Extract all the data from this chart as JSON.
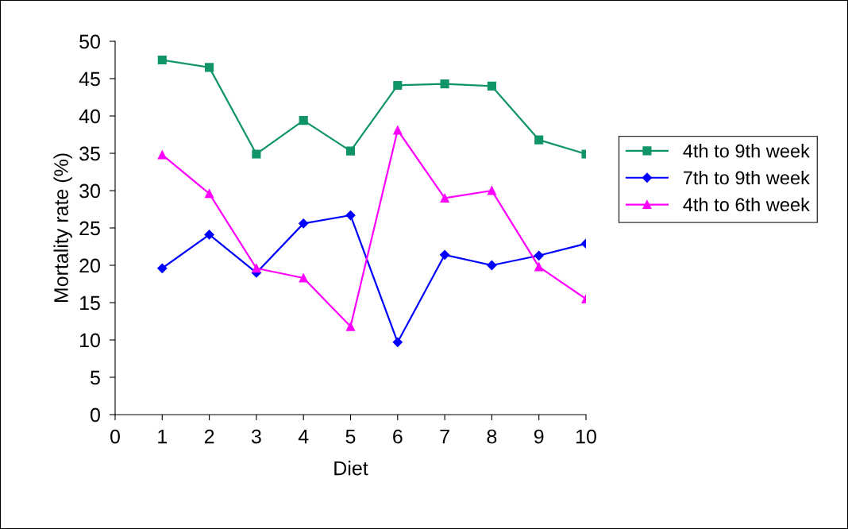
{
  "chart_data": {
    "type": "line",
    "xlabel": "Diet",
    "ylabel": "Mortality rate (%)",
    "x": [
      1,
      2,
      3,
      4,
      5,
      6,
      7,
      8,
      9,
      10
    ],
    "xlim": [
      0,
      10
    ],
    "xticks": [
      0,
      1,
      2,
      3,
      4,
      5,
      6,
      7,
      8,
      9,
      10
    ],
    "ylim": [
      0,
      50
    ],
    "yticks": [
      0,
      5,
      10,
      15,
      20,
      25,
      30,
      35,
      40,
      45,
      50
    ],
    "grid": false,
    "legend": "right",
    "line_style": "solid",
    "series": [
      {
        "name": "4th to 9th week",
        "color": "#109469",
        "marker": "square",
        "values": [
          47.5,
          46.5,
          34.9,
          39.4,
          35.3,
          44.1,
          44.3,
          44.0,
          36.8,
          34.9
        ]
      },
      {
        "name": "7th to 9th week",
        "color": "#0000ff",
        "marker": "diamond",
        "values": [
          19.6,
          24.1,
          19.0,
          25.6,
          26.7,
          9.7,
          21.4,
          20.0,
          21.3,
          22.9
        ]
      },
      {
        "name": "4th to 6th week",
        "color": "#ff00ff",
        "marker": "triangle",
        "values": [
          34.8,
          29.6,
          19.6,
          18.3,
          11.8,
          38.1,
          29.0,
          30.0,
          19.8,
          15.5
        ]
      }
    ]
  }
}
